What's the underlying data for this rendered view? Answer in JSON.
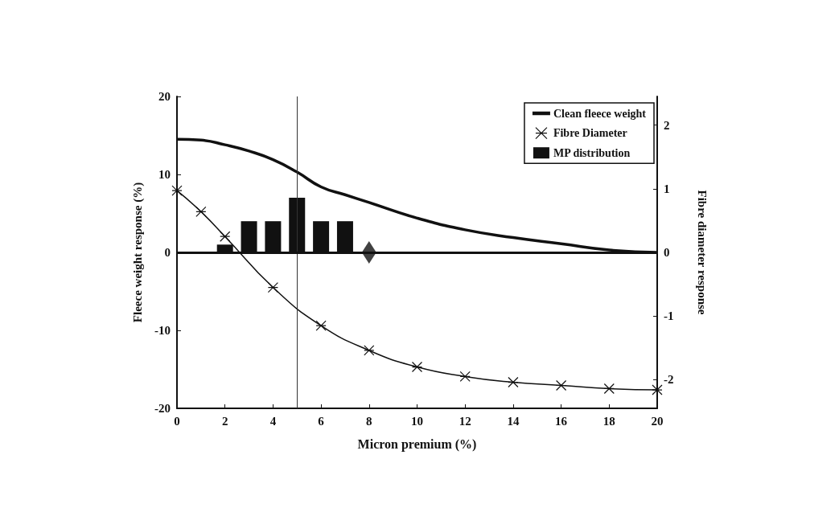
{
  "chart_data": {
    "type": "line",
    "xlabel": "Micron premium (%)",
    "ylabel": "Fleece weight response (%)",
    "y2label": "Fibre diameter response",
    "xlim": [
      0,
      20
    ],
    "xticks": [
      0,
      2,
      4,
      6,
      8,
      10,
      12,
      14,
      16,
      18,
      20
    ],
    "ylim": [
      -20,
      20
    ],
    "yticks": [
      -20,
      -10,
      0,
      10,
      20
    ],
    "y2lim": [
      -2.45,
      2.45
    ],
    "y2ticks": [
      -2,
      -1,
      0,
      1,
      2
    ],
    "grid": false,
    "legend": "top right",
    "series": [
      {
        "name": "Clean fleece weight",
        "color": "#111111",
        "marker": "none",
        "x": [
          0,
          1,
          2,
          3,
          4,
          5,
          6,
          7,
          8,
          10,
          12,
          14,
          16,
          18,
          20
        ],
        "values": [
          14.5,
          14.4,
          13.8,
          13,
          11.9,
          10.3,
          8.4,
          7.4,
          6.4,
          4.4,
          2.9,
          1.9,
          1.1,
          0.3,
          0
        ]
      },
      {
        "name": "Fibre Diameter",
        "axis": "y2",
        "color": "#111111",
        "marker": "cross",
        "x": [
          0,
          1,
          2,
          4,
          6,
          8,
          10,
          12,
          14,
          16,
          18,
          20
        ],
        "values": [
          0.97,
          0.64,
          0.25,
          -0.55,
          -1.15,
          -1.54,
          -1.8,
          -1.95,
          -2.04,
          -2.09,
          -2.14,
          -2.16
        ]
      },
      {
        "name": "MP distribution",
        "type": "bar",
        "color": "#111111",
        "x": [
          2,
          3,
          4,
          5,
          6,
          7
        ],
        "values": [
          1,
          4,
          4,
          7,
          4,
          4
        ]
      },
      {
        "type": "scatter",
        "color": "#111111",
        "marker": "diamond",
        "x": [
          8
        ],
        "values": [
          0
        ]
      }
    ],
    "ref_lines": [
      {
        "axis": "x",
        "value": 5,
        "color": "#333333",
        "line_style": "solid"
      },
      {
        "axis": "y",
        "value": 0,
        "color": "#111111",
        "line_style": "solid"
      }
    ]
  }
}
